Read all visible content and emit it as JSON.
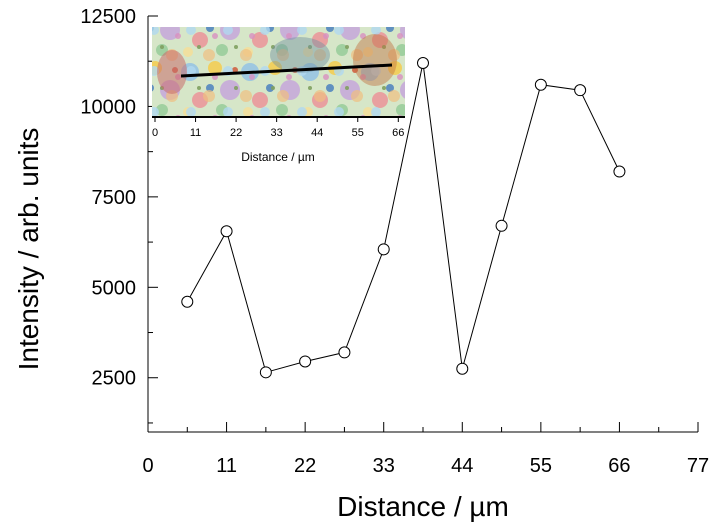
{
  "chart_data": {
    "type": "line",
    "title": "",
    "xlabel": "Distance / µm",
    "ylabel": "Intensity / arb. units",
    "xlim": [
      0,
      77
    ],
    "ylim": [
      1000,
      12500
    ],
    "xticks": [
      0,
      11,
      22,
      33,
      44,
      55,
      66,
      77
    ],
    "xtick_labels": [
      "0",
      "11",
      "22",
      "33",
      "44",
      "55",
      "66",
      "77"
    ],
    "yticks": [
      2500,
      5000,
      7500,
      10000,
      12500
    ],
    "ytick_labels": [
      "2500",
      "5000",
      "7500",
      "10000",
      "12500"
    ],
    "grid": false,
    "marker": "open-circle",
    "line_color": "#000000",
    "series": [
      {
        "x": [
          5.5,
          11,
          16.5,
          22,
          27.5,
          33,
          38.5,
          44,
          49.5,
          55,
          60.5,
          66
        ],
        "y": [
          4600,
          6550,
          2650,
          2950,
          3200,
          6050,
          11200,
          2750,
          6700,
          10600,
          10450,
          8200
        ]
      }
    ],
    "inset": {
      "content": "optical micrograph with line-scan path",
      "xtick_labels": [
        "0",
        "11",
        "22",
        "33",
        "44",
        "55",
        "66"
      ],
      "xlabel": "Distance / µm"
    }
  }
}
